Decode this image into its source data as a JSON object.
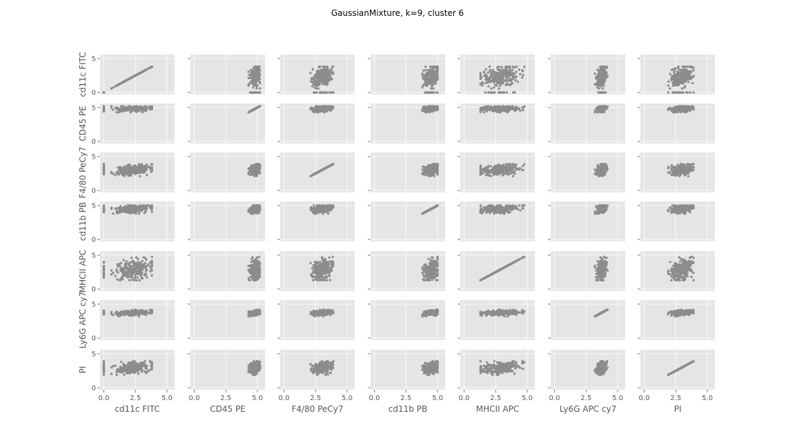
{
  "chart_data": {
    "type": "scatter",
    "layout": "pairplot-matrix",
    "title": "GaussianMixture, k=9, cluster 6",
    "variables": [
      "cd11c FITC",
      "CD45 PE",
      "F4/80 PeCy7",
      "cd11b PB",
      "MHCII APC",
      "Ly6G APC cy7",
      "PI"
    ],
    "xlim": [
      -0.3,
      5.6
    ],
    "ylim": [
      -0.3,
      5.6
    ],
    "x_ticks": [
      "0.0",
      "2.5",
      "5.0"
    ],
    "y_ticks": [
      "0",
      "5"
    ],
    "grid": true,
    "point_color": "#8c8c8c",
    "background_color": "#e5e5e5",
    "variable_distributions": [
      {
        "name": "cd11c FITC",
        "mean": 2.3,
        "sd": 0.8,
        "min": 0.6,
        "max": 3.8,
        "zero_fraction": 0.08
      },
      {
        "name": "CD45 PE",
        "mean": 4.8,
        "sd": 0.2,
        "min": 4.3,
        "max": 5.2,
        "zero_fraction": 0
      },
      {
        "name": "F4/80 PeCy7",
        "mean": 3.0,
        "sd": 0.4,
        "min": 2.1,
        "max": 3.9,
        "zero_fraction": 0
      },
      {
        "name": "cd11b PB",
        "mean": 4.5,
        "sd": 0.3,
        "min": 3.8,
        "max": 5.0,
        "zero_fraction": 0
      },
      {
        "name": "MHCII APC",
        "mean": 2.8,
        "sd": 0.8,
        "min": 1.3,
        "max": 5.2,
        "zero_fraction": 0
      },
      {
        "name": "Ly6G APC cy7",
        "mean": 3.7,
        "sd": 0.2,
        "min": 3.2,
        "max": 4.3,
        "zero_fraction": 0
      },
      {
        "name": "PI",
        "mean": 2.9,
        "sd": 0.45,
        "min": 1.9,
        "max": 3.9,
        "zero_fraction": 0
      }
    ]
  }
}
